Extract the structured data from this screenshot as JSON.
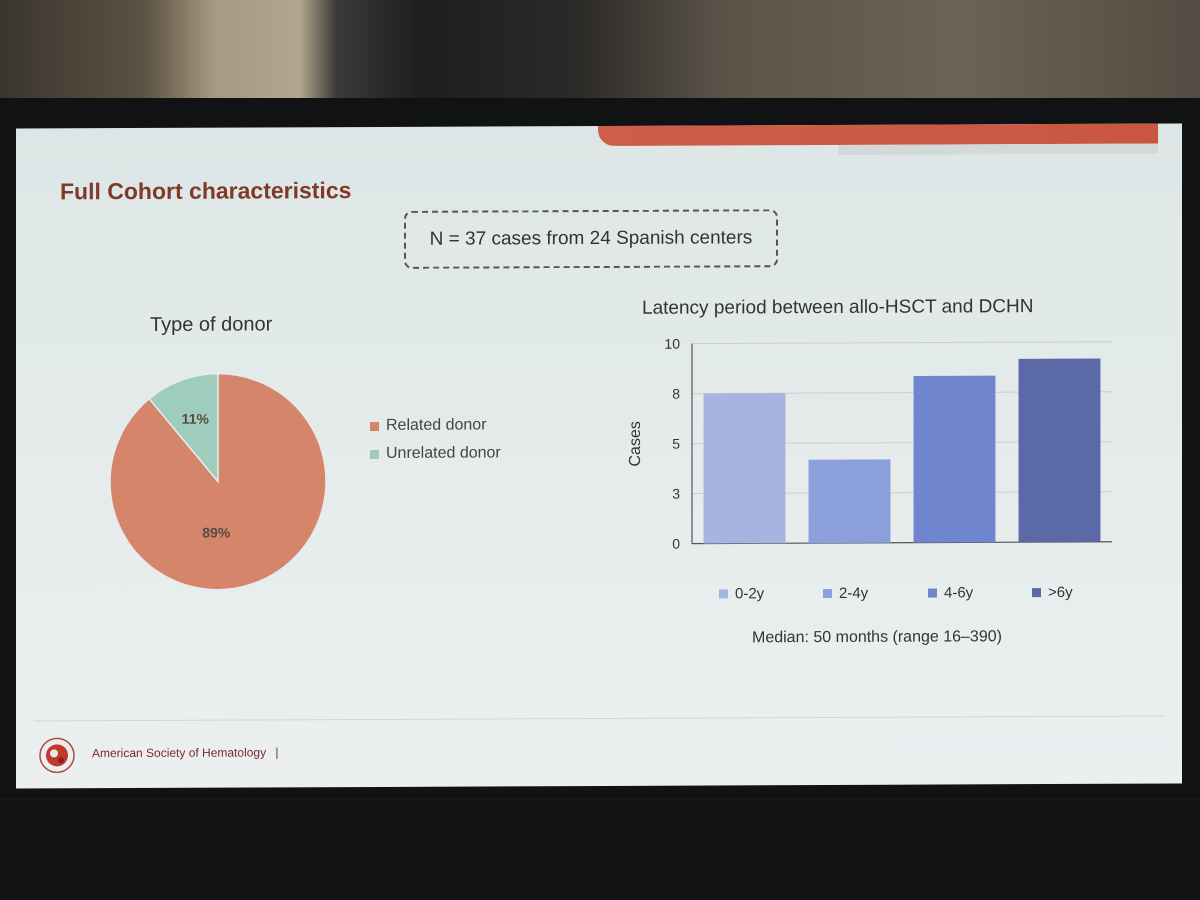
{
  "slide": {
    "title": "Full Cohort characteristics",
    "n_box": "N = 37 cases from 24 Spanish centers",
    "footer_org": "American Society of Hematology",
    "footer_sep": "|"
  },
  "chart_data": [
    {
      "type": "pie",
      "title": "Type of donor",
      "categories": [
        "Related donor",
        "Unrelated donor"
      ],
      "values": [
        89,
        11
      ],
      "labels": [
        "89%",
        "11%"
      ],
      "colors": [
        "#d4856a",
        "#9fcdbd"
      ],
      "legend": "right"
    },
    {
      "type": "bar",
      "title": "Latency period between allo-HSCT and DCHN",
      "categories": [
        "0-2y",
        "2-4y",
        "4-6y",
        ">6y"
      ],
      "values": [
        9,
        5,
        10,
        11
      ],
      "ylabel": "Cases",
      "xlabel": "",
      "yticks": [
        "0",
        "3",
        "5",
        "8",
        "10"
      ],
      "ylim": [
        0,
        12
      ],
      "colors": [
        "#a6b5df",
        "#8ba0da",
        "#6f86cf",
        "#5b6aa6"
      ],
      "grid": true,
      "legend": "bottom",
      "note": "Median: 50 months (range 16–390)"
    }
  ]
}
